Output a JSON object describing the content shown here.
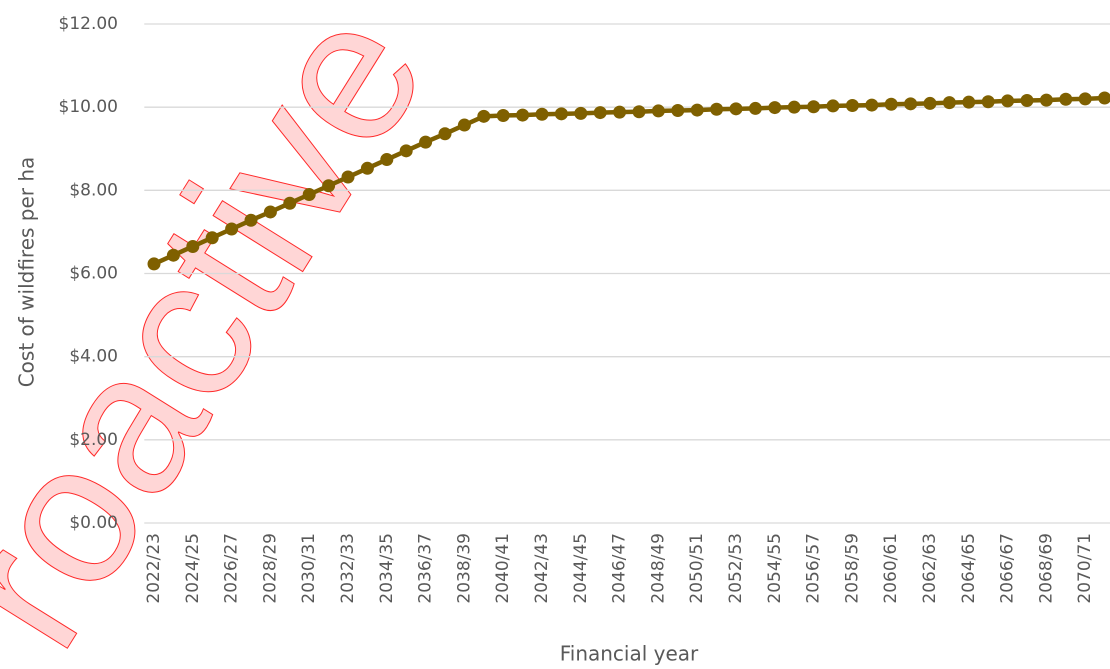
{
  "watermark": "roactive",
  "chart_data": {
    "type": "line",
    "y_label": "Cost of wildfires per ha",
    "x_label": "Financial year",
    "categories": [
      "2022/23",
      null,
      "2024/25",
      null,
      "2026/27",
      null,
      "2028/29",
      null,
      "2030/31",
      null,
      "2032/33",
      null,
      "2034/35",
      null,
      "2036/37",
      null,
      "2038/39",
      null,
      "2040/41",
      null,
      "2042/43",
      null,
      "2044/45",
      null,
      "2046/47",
      null,
      "2048/49",
      null,
      "2050/51",
      null,
      "2052/53",
      null,
      "2054/55",
      null,
      "2056/57",
      null,
      "2058/59",
      null,
      "2060/61",
      null,
      "2062/63",
      null,
      "2064/65",
      null,
      "2066/67",
      null,
      "2068/69",
      null,
      "2070/71",
      null
    ],
    "series": [
      {
        "color": "#7f6000",
        "values": [
          6.23,
          6.44,
          6.65,
          6.86,
          7.07,
          7.28,
          7.48,
          7.69,
          7.9,
          8.11,
          8.32,
          8.53,
          8.74,
          8.95,
          9.16,
          9.36,
          9.57,
          9.78,
          9.8,
          9.81,
          9.83,
          9.84,
          9.85,
          9.87,
          9.88,
          9.89,
          9.91,
          9.92,
          9.93,
          9.95,
          9.96,
          9.97,
          9.99,
          10.0,
          10.01,
          10.03,
          10.04,
          10.05,
          10.07,
          10.08,
          10.09,
          10.11,
          10.12,
          10.13,
          10.15,
          10.16,
          10.17,
          10.19,
          10.2,
          10.22
        ]
      }
    ],
    "ylim": [
      0,
      12
    ],
    "yticks": [
      {
        "value": 0,
        "label": "$0.00"
      },
      {
        "value": 2,
        "label": "$2.00"
      },
      {
        "value": 4,
        "label": "$4.00"
      },
      {
        "value": 6,
        "label": "$6.00"
      },
      {
        "value": 8,
        "label": "$8.00"
      },
      {
        "value": 10,
        "label": "$10.00"
      },
      {
        "value": 12,
        "label": "$12.00"
      }
    ],
    "grid": true
  }
}
